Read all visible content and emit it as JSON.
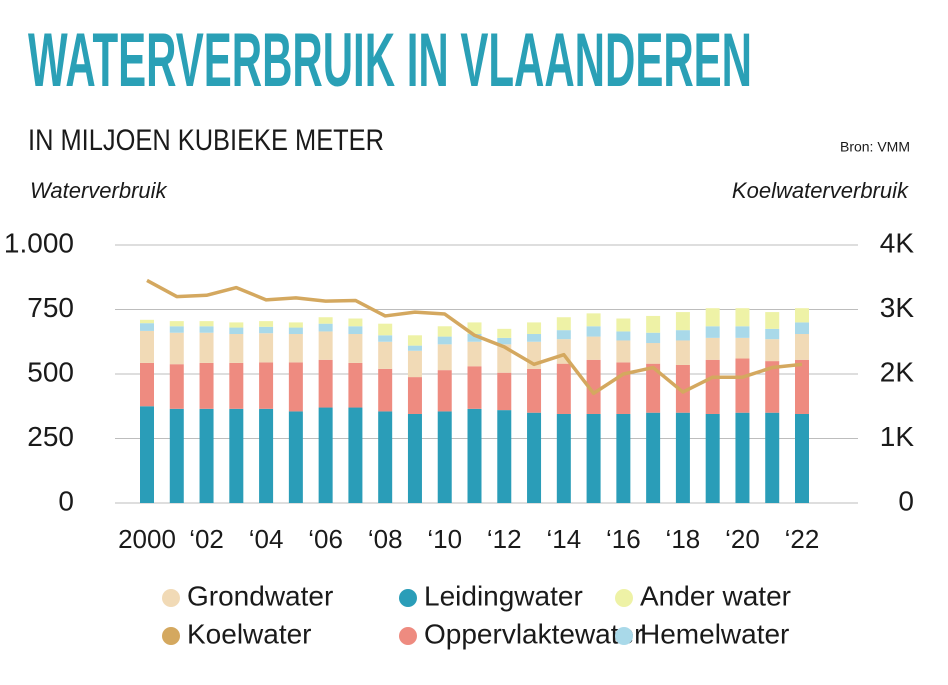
{
  "chart_data": {
    "type": "bar",
    "stacked": true,
    "title": "WATERVERBRUIK IN VLAANDEREN",
    "subtitle": "IN MILJOEN KUBIEKE METER",
    "source": "Bron: VMM",
    "y_label": "Waterverbruik",
    "y2_label": "Koelwaterverbruik",
    "categories": [
      "2000",
      null,
      "‘02",
      null,
      "‘04",
      null,
      "‘06",
      null,
      "‘08",
      null,
      "‘10",
      null,
      "‘12",
      null,
      "‘14",
      null,
      "‘16",
      null,
      "‘18",
      null,
      "‘20",
      null,
      "‘22"
    ],
    "series": [
      {
        "name": "Leidingwater",
        "color": "#2a9db8",
        "values": [
          375,
          365,
          365,
          365,
          365,
          355,
          370,
          370,
          355,
          345,
          355,
          365,
          360,
          350,
          345,
          345,
          345,
          350,
          350,
          345,
          350,
          350,
          345
        ]
      },
      {
        "name": "Oppervlaktewater",
        "color": "#ee8b80",
        "values": [
          168,
          173,
          178,
          178,
          180,
          190,
          185,
          173,
          165,
          143,
          160,
          165,
          145,
          170,
          195,
          210,
          200,
          190,
          185,
          210,
          210,
          200,
          210
        ]
      },
      {
        "name": "Grondwater",
        "color": "#f1dab6",
        "values": [
          124,
          122,
          117,
          112,
          113,
          110,
          110,
          112,
          105,
          102,
          100,
          95,
          110,
          105,
          95,
          90,
          85,
          80,
          95,
          85,
          80,
          85,
          100
        ]
      },
      {
        "name": "Hemelwater",
        "color": "#a9d9e9",
        "values": [
          30,
          25,
          25,
          25,
          25,
          25,
          30,
          30,
          25,
          20,
          30,
          30,
          25,
          30,
          35,
          40,
          35,
          40,
          40,
          45,
          45,
          40,
          45
        ]
      },
      {
        "name": "Ander water",
        "color": "#eef2a6",
        "values": [
          13,
          20,
          20,
          20,
          22,
          20,
          25,
          30,
          45,
          40,
          40,
          45,
          35,
          45,
          50,
          50,
          50,
          65,
          70,
          70,
          70,
          65,
          55
        ]
      },
      {
        "name": "Koelwater",
        "color": "#d4a85f",
        "type": "line",
        "axis": "y2",
        "values": [
          3450,
          3200,
          3220,
          3340,
          3150,
          3180,
          3130,
          3140,
          2900,
          2960,
          2930,
          2600,
          2420,
          2150,
          2300,
          1700,
          2000,
          2100,
          1720,
          1950,
          1950,
          2100,
          2150
        ]
      }
    ],
    "ylim": [
      0,
      1000
    ],
    "yticks": [
      0,
      250,
      500,
      750,
      {
        "value": 1000,
        "label": "1.000"
      }
    ],
    "y2lim": [
      0,
      4000
    ],
    "y2ticks": [
      0,
      {
        "value": 1000,
        "label": "1K"
      },
      {
        "value": 2000,
        "label": "2K"
      },
      {
        "value": 3000,
        "label": "3K"
      },
      {
        "value": 4000,
        "label": "4K"
      }
    ],
    "grid": true
  }
}
